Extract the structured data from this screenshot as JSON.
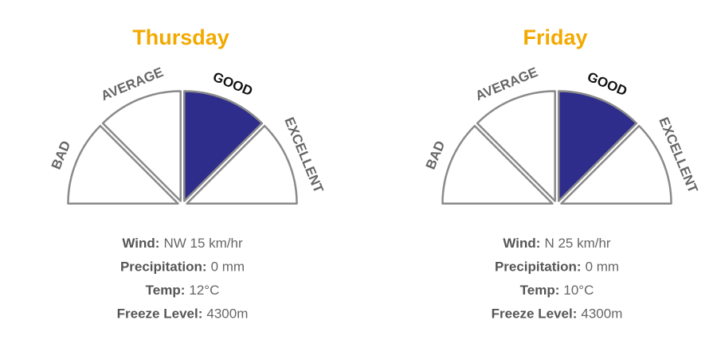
{
  "days": [
    {
      "title": "Thursday",
      "segments": [
        {
          "label": "BAD",
          "filled": false
        },
        {
          "label": "AVERAGE",
          "filled": false
        },
        {
          "label": "GOOD",
          "filled": true
        },
        {
          "label": "EXCELLENT",
          "filled": false
        }
      ],
      "details": [
        {
          "label": "Wind:",
          "value": "NW 15 km/hr"
        },
        {
          "label": "Precipitation:",
          "value": "0 mm"
        },
        {
          "label": "Temp:",
          "value": "12°C"
        },
        {
          "label": "Freeze Level:",
          "value": "4300m"
        }
      ]
    },
    {
      "title": "Friday",
      "segments": [
        {
          "label": "BAD",
          "filled": false
        },
        {
          "label": "AVERAGE",
          "filled": false
        },
        {
          "label": "GOOD",
          "filled": true
        },
        {
          "label": "EXCELLENT",
          "filled": false
        }
      ],
      "details": [
        {
          "label": "Wind:",
          "value": "N 25 km/hr"
        },
        {
          "label": "Precipitation:",
          "value": "0 mm"
        },
        {
          "label": "Temp:",
          "value": "10°C"
        },
        {
          "label": "Freeze Level:",
          "value": "4300m"
        }
      ]
    }
  ]
}
